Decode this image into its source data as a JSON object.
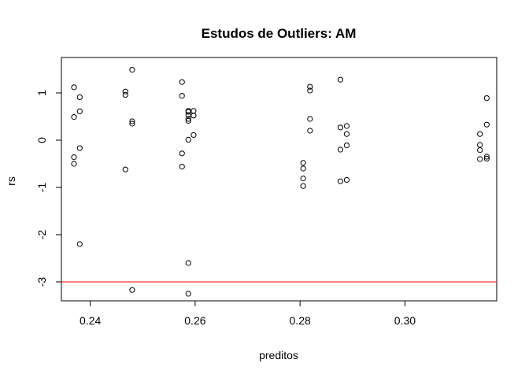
{
  "chart_data": {
    "type": "scatter",
    "title": "Estudos de Outliers:  AM",
    "xlabel": "preditos",
    "ylabel": "rs",
    "xlim": [
      0.2345,
      0.3175
    ],
    "ylim": [
      -3.4,
      1.75
    ],
    "x_ticks": [
      0.24,
      0.26,
      0.28,
      0.3
    ],
    "x_tick_labels": [
      "0.24",
      "0.26",
      "0.28",
      "0.30"
    ],
    "y_ticks": [
      -3,
      -2,
      -1,
      0,
      1
    ],
    "y_tick_labels": [
      "-3",
      "-2",
      "-1",
      "0",
      "1"
    ],
    "grid": false,
    "reference_line": {
      "y": -3,
      "color": "#ff0000"
    },
    "point_color": "#000000",
    "x": [
      0.2369,
      0.2369,
      0.2369,
      0.2369,
      0.238,
      0.238,
      0.238,
      0.238,
      0.2467,
      0.2467,
      0.2467,
      0.248,
      0.248,
      0.248,
      0.248,
      0.2575,
      0.2575,
      0.2575,
      0.2575,
      0.2587,
      0.2587,
      0.2587,
      0.2587,
      0.2587,
      0.2587,
      0.2587,
      0.2587,
      0.2597,
      0.2597,
      0.2597,
      0.2806,
      0.2806,
      0.2806,
      0.2806,
      0.2819,
      0.2819,
      0.2819,
      0.2819,
      0.2877,
      0.2877,
      0.2877,
      0.2877,
      0.2889,
      0.2889,
      0.2889,
      0.2889,
      0.3143,
      0.3143,
      0.3143,
      0.3143,
      0.3156,
      0.3156,
      0.3156,
      0.3156
    ],
    "y": [
      1.12,
      0.49,
      -0.36,
      -0.5,
      0.91,
      0.61,
      -0.17,
      -2.2,
      1.03,
      0.96,
      -0.62,
      1.49,
      0.4,
      0.35,
      -3.17,
      1.23,
      0.94,
      -0.28,
      -0.56,
      0.62,
      0.6,
      0.53,
      0.45,
      0.41,
      0.01,
      -2.6,
      -3.25,
      0.62,
      0.52,
      0.11,
      -0.48,
      -0.6,
      -0.81,
      -0.97,
      1.13,
      1.05,
      0.45,
      0.2,
      1.28,
      0.27,
      -0.2,
      -0.87,
      0.3,
      0.13,
      -0.11,
      -0.84,
      0.13,
      -0.1,
      -0.21,
      -0.4,
      0.89,
      0.33,
      -0.35,
      -0.39
    ]
  }
}
